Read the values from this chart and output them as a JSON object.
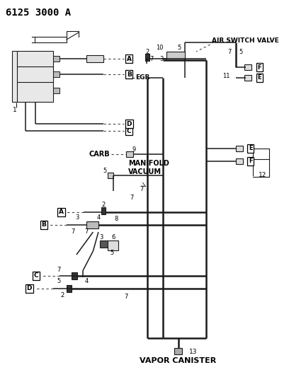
{
  "title": "6125 3000 A",
  "bg_color": "#ffffff",
  "line_color": "#1a1a1a",
  "text_color": "#000000",
  "labels": {
    "air_switch_valve": "AIR SWITCH VALVE",
    "egr": "EGR",
    "carb": "CARB",
    "manifold_vacuum": "MANIFOLD\nVACUUM",
    "vapor_canister": "VAPOR CANISTER"
  }
}
